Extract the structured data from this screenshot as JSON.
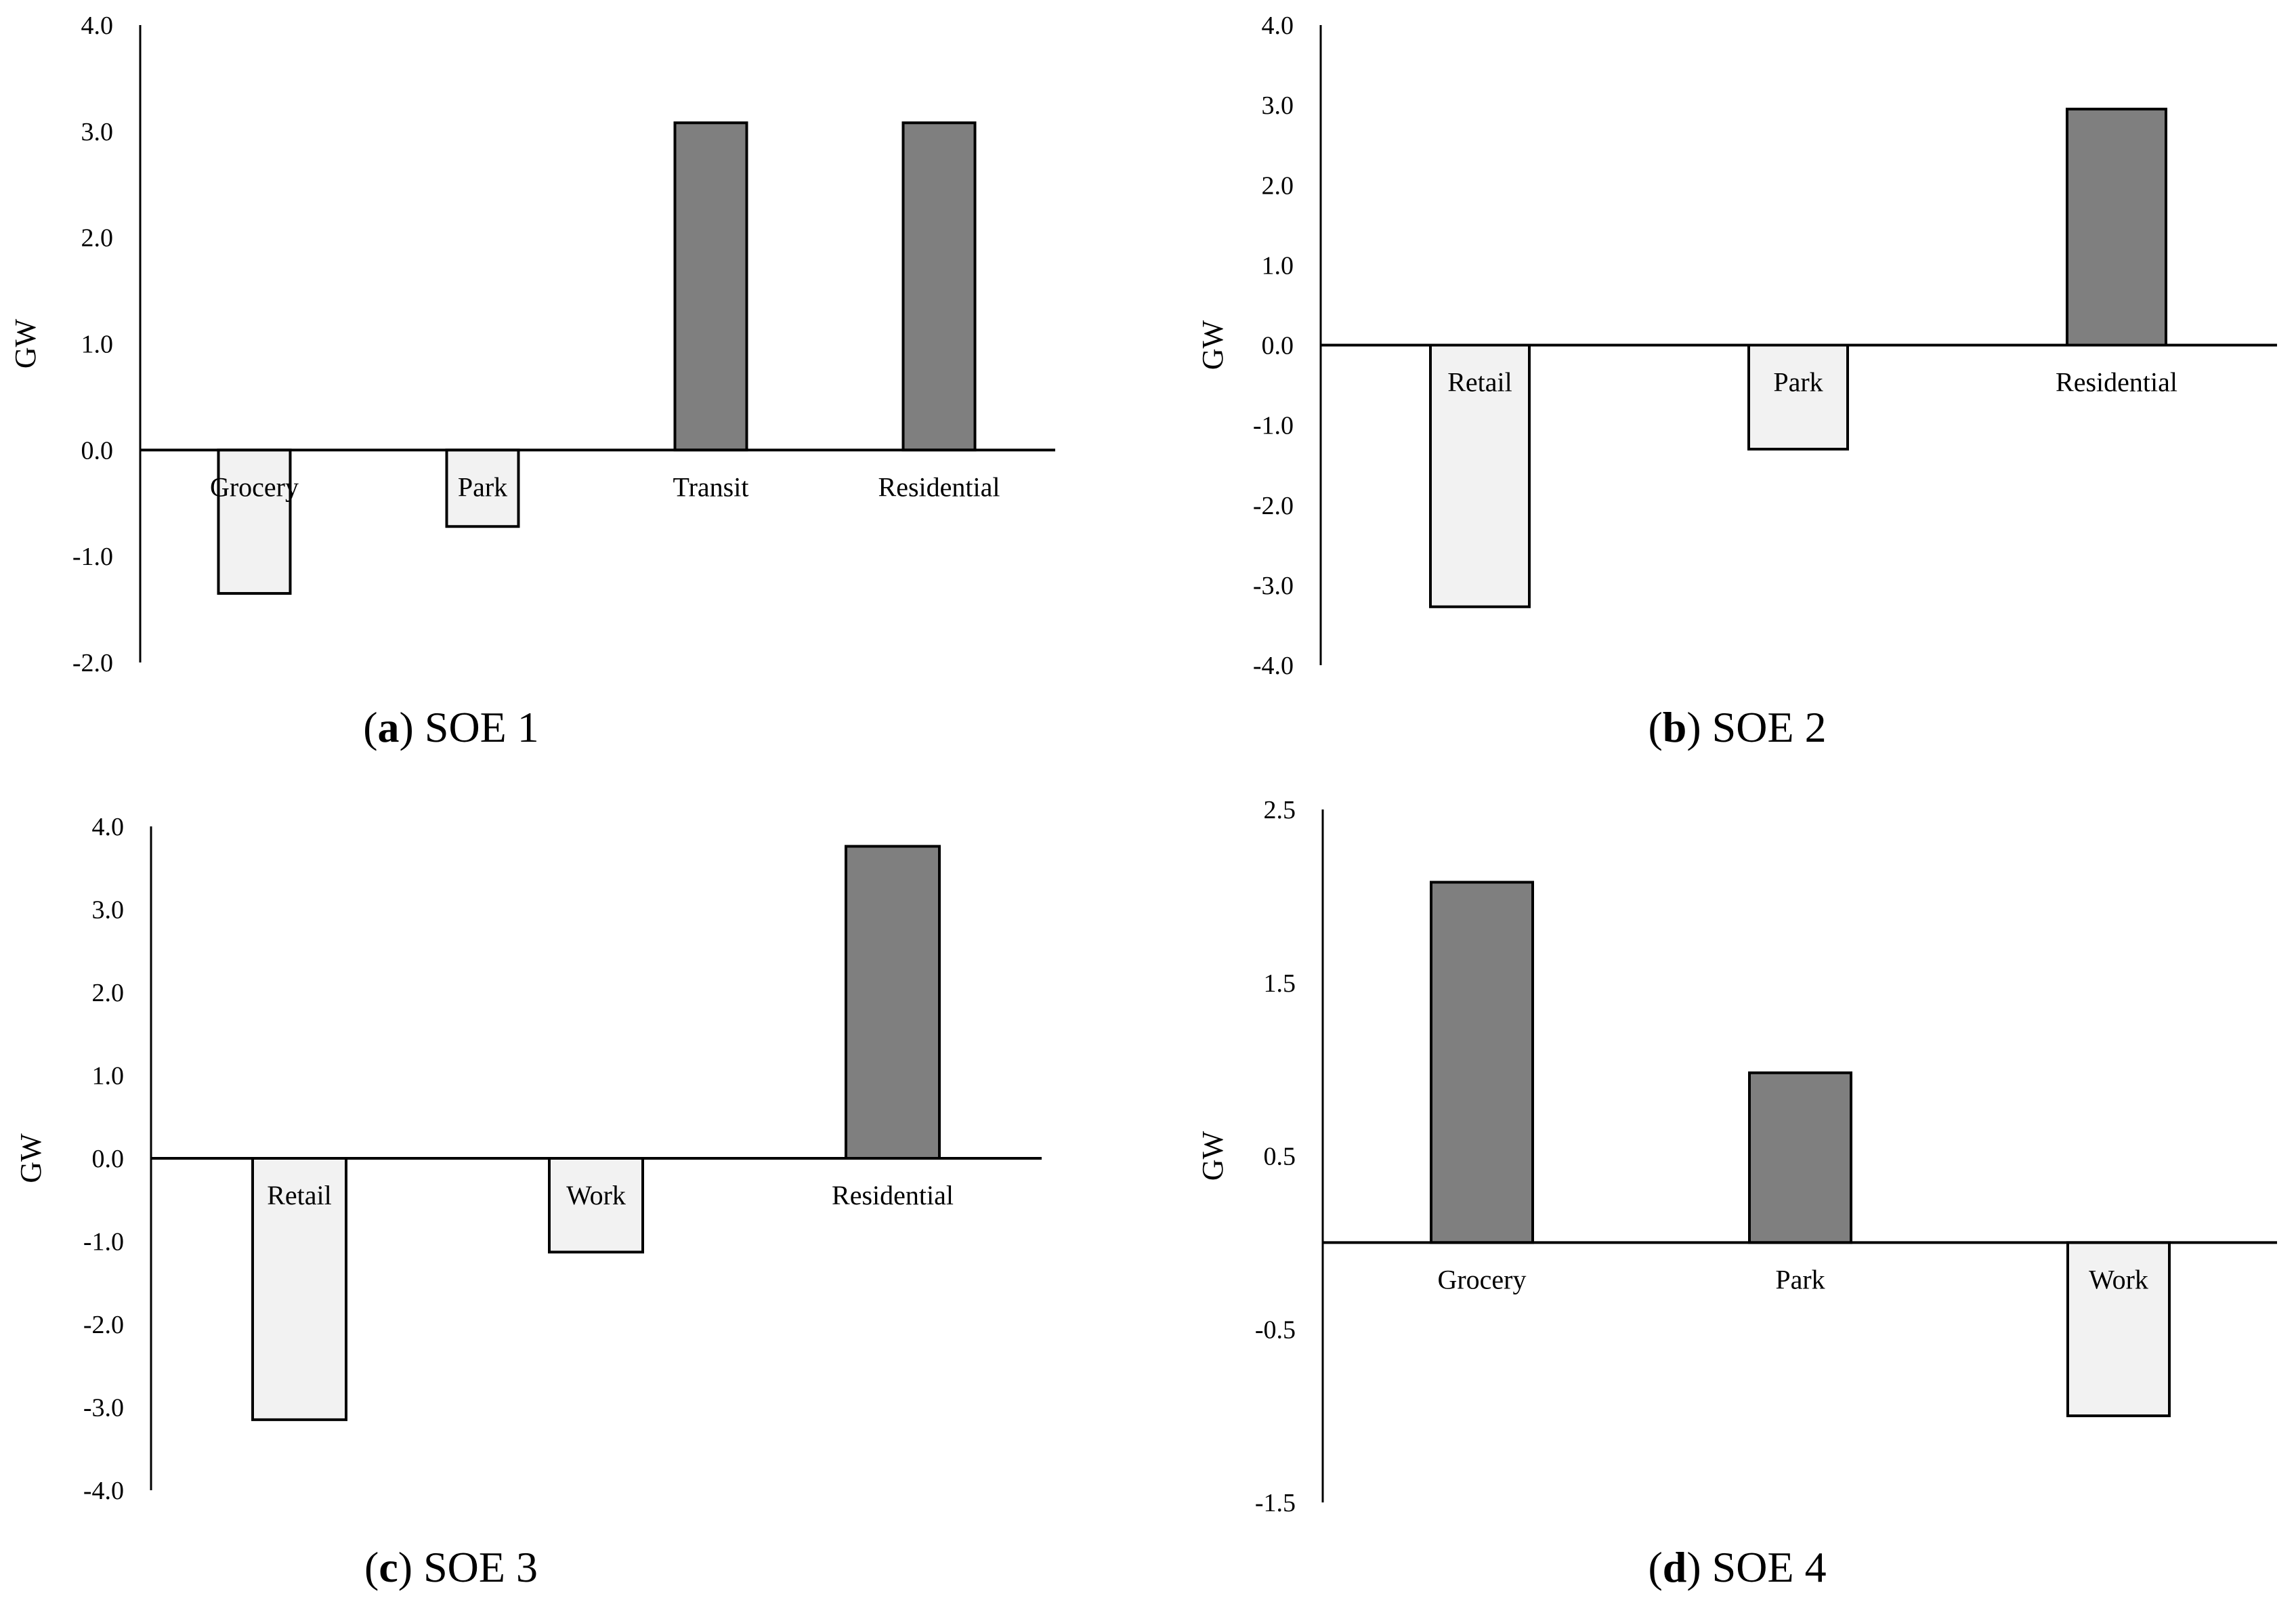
{
  "colors": {
    "positive_bar": "#7f7f7f",
    "negative_bar": "#f2f2f2",
    "bar_stroke": "#000000",
    "axis": "#000000"
  },
  "chart_data": [
    {
      "type": "bar",
      "caption_letter": "a",
      "caption_text": " SOE 1",
      "ylabel": "GW",
      "ylim": [
        -2.0,
        4.0
      ],
      "yticks": [
        4.0,
        3.0,
        2.0,
        1.0,
        0.0,
        -1.0,
        -2.0
      ],
      "ytick_labels": [
        "4.0",
        "3.0",
        "2.0",
        "1.0",
        "0.0",
        "-1.0",
        "-2.0"
      ],
      "categories": [
        "Grocery",
        "Park",
        "Transit",
        "Residential"
      ],
      "values": [
        -1.35,
        -0.72,
        3.08,
        3.08
      ]
    },
    {
      "type": "bar",
      "caption_letter": "b",
      "caption_text": " SOE 2",
      "ylabel": "GW",
      "ylim": [
        -4.0,
        4.0
      ],
      "yticks": [
        4.0,
        3.0,
        2.0,
        1.0,
        0.0,
        -1.0,
        -2.0,
        -3.0,
        -4.0
      ],
      "ytick_labels": [
        "4.0",
        "3.0",
        "2.0",
        "1.0",
        "0.0",
        "-1.0",
        "-2.0",
        "-3.0",
        "-4.0"
      ],
      "categories": [
        "Retail",
        "Park",
        "Residential"
      ],
      "values": [
        -3.27,
        -1.3,
        2.95
      ]
    },
    {
      "type": "bar",
      "caption_letter": "c",
      "caption_text": " SOE 3",
      "ylabel": "GW",
      "ylim": [
        -4.0,
        4.0
      ],
      "yticks": [
        4.0,
        3.0,
        2.0,
        1.0,
        0.0,
        -1.0,
        -2.0,
        -3.0,
        -4.0
      ],
      "ytick_labels": [
        "4.0",
        "3.0",
        "2.0",
        "1.0",
        "0.0",
        "-1.0",
        "-2.0",
        "-3.0",
        "-4.0"
      ],
      "categories": [
        "Retail",
        "Work",
        "Residential"
      ],
      "values": [
        -3.15,
        -1.13,
        3.76
      ]
    },
    {
      "type": "bar",
      "caption_letter": "d",
      "caption_text": " SOE 4",
      "ylabel": "GW",
      "ylim": [
        -1.5,
        2.5
      ],
      "yticks": [
        2.5,
        1.5,
        0.5,
        -0.5,
        -1.5
      ],
      "ytick_labels": [
        "2.5",
        "1.5",
        "0.5",
        "-0.5",
        "-1.5"
      ],
      "categories": [
        "Grocery",
        "Park",
        "Work"
      ],
      "values": [
        2.08,
        0.98,
        -1.0
      ]
    }
  ]
}
